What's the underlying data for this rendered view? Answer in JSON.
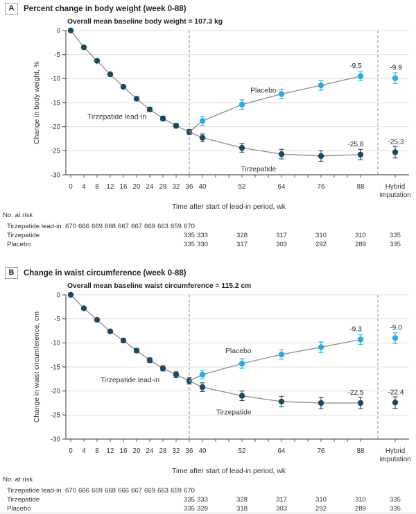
{
  "colors": {
    "dark_series": "#1b4a5c",
    "light_series": "#29abe2",
    "line": "#8c8c8c",
    "grid": "#dedede",
    "axis": "#58595b",
    "dashed": "#8f8f8f",
    "text": "#333333",
    "title_text": "#222222"
  },
  "chart_data": [
    {
      "type": "line",
      "panel_letter": "A",
      "title": "Percent change in body weight (week 0-88)",
      "subtitle": "Overall mean baseline body weight = 107.3 kg",
      "ylabel": "Change in body weight, %",
      "xlabel": "Time after start of lead-in period, wk",
      "ylim": [
        -30,
        0
      ],
      "yticks": [
        0,
        -5,
        -10,
        -15,
        -20,
        -25,
        -30
      ],
      "xtick_weeks": [
        0,
        4,
        8,
        12,
        16,
        20,
        24,
        28,
        32,
        36,
        40,
        52,
        64,
        76,
        88
      ],
      "hybrid_label": [
        "Hybrid",
        "imputation"
      ],
      "randomization_week": 36,
      "grid": true,
      "series": [
        {
          "name": "Tirzepatide lead-in",
          "key": "leadin",
          "color": "dark",
          "weeks": [
            0,
            4,
            8,
            12,
            16,
            20,
            24,
            28,
            32,
            36
          ],
          "values": [
            0,
            -3.5,
            -6.3,
            -9.1,
            -11.7,
            -14.2,
            -16.4,
            -18.3,
            -19.8,
            -21.1
          ],
          "se": [
            0,
            0.25,
            0.3,
            0.3,
            0.35,
            0.4,
            0.45,
            0.5,
            0.5,
            0.55
          ],
          "label": {
            "text": "Tirzepatide lead-in",
            "week": 14,
            "value": -17.9
          }
        },
        {
          "name": "Placebo",
          "key": "placebo",
          "color": "light",
          "weeks": [
            40,
            52,
            64,
            76,
            88
          ],
          "values": [
            -18.8,
            -15.4,
            -13.2,
            -11.4,
            -9.5
          ],
          "se": [
            0.9,
            1.0,
            1.0,
            1.0,
            0.9
          ],
          "end_label": "-9.5",
          "hybrid": {
            "value": -9.9,
            "se": 1.1,
            "label": "-9.9"
          },
          "label": {
            "text": "Placebo",
            "week": 58.5,
            "value": -12.4
          }
        },
        {
          "name": "Tirzepatide",
          "key": "tirzepatide",
          "color": "dark",
          "weeks": [
            40,
            52,
            64,
            76,
            88
          ],
          "values": [
            -22.3,
            -24.4,
            -25.7,
            -26.1,
            -25.8
          ],
          "se": [
            0.8,
            0.9,
            1.0,
            1.1,
            1.1
          ],
          "end_label": "-25.8",
          "hybrid": {
            "value": -25.3,
            "se": 1.2,
            "label": "-25.3"
          },
          "label": {
            "text": "Tirzepatide",
            "week": 57,
            "value": -28.8
          }
        }
      ],
      "at_risk": {
        "header": "No. at risk",
        "rows": [
          {
            "label": "Tirzepatide lead-in",
            "positions": [
              0,
              4,
              8,
              12,
              16,
              20,
              24,
              28,
              32,
              36
            ],
            "values": [
              "670",
              "666",
              "669",
              "668",
              "667",
              "667",
              "669",
              "663",
              "659",
              "670"
            ]
          },
          {
            "label": "Tirzepatide",
            "positions": [
              36,
              40,
              52,
              64,
              76,
              88,
              null
            ],
            "values": [
              "335",
              "333",
              "328",
              "317",
              "310",
              "310",
              "335"
            ]
          },
          {
            "label": "Placebo",
            "positions": [
              36,
              40,
              52,
              64,
              76,
              88,
              null
            ],
            "values": [
              "335",
              "330",
              "317",
              "303",
              "292",
              "289",
              "335"
            ]
          }
        ]
      }
    },
    {
      "type": "line",
      "panel_letter": "B",
      "title": "Change in waist circumference (week 0-88)",
      "subtitle": "Overall mean baseline waist circumference = 115.2 cm",
      "ylabel": "Change in waist circumference, cm",
      "xlabel": "Time after start of lead-in period, wk",
      "ylim": [
        -30,
        0
      ],
      "yticks": [
        0,
        -5,
        -10,
        -15,
        -20,
        -25,
        -30
      ],
      "xtick_weeks": [
        0,
        4,
        8,
        12,
        16,
        20,
        24,
        28,
        32,
        36,
        40,
        52,
        64,
        76,
        88
      ],
      "hybrid_label": [
        "Hybrid",
        "imputation"
      ],
      "randomization_week": 36,
      "grid": true,
      "series": [
        {
          "name": "Tirzepatide lead-in",
          "key": "leadin",
          "color": "dark",
          "weeks": [
            0,
            4,
            8,
            12,
            16,
            20,
            24,
            28,
            32,
            36
          ],
          "values": [
            0,
            -2.8,
            -5.2,
            -7.6,
            -9.5,
            -11.6,
            -13.6,
            -15.3,
            -16.6,
            -17.9
          ],
          "se": [
            0,
            0.25,
            0.3,
            0.35,
            0.4,
            0.45,
            0.5,
            0.55,
            0.6,
            0.65
          ],
          "label": {
            "text": "Tirzepatide lead-in",
            "week": 18,
            "value": -17.7
          }
        },
        {
          "name": "Placebo",
          "key": "placebo",
          "color": "light",
          "weeks": [
            40,
            52,
            64,
            76,
            88
          ],
          "values": [
            -16.6,
            -14.3,
            -12.4,
            -10.9,
            -9.3
          ],
          "se": [
            0.9,
            1.0,
            1.0,
            1.1,
            1.0
          ],
          "end_label": "-9.3",
          "hybrid": {
            "value": -9.0,
            "se": 1.1,
            "label": "-9.0"
          },
          "label": {
            "text": "Placebo",
            "week": 50.9,
            "value": -11.6
          }
        },
        {
          "name": "Tirzepatide",
          "key": "tirzepatide",
          "color": "dark",
          "weeks": [
            40,
            52,
            64,
            76,
            88
          ],
          "values": [
            -19.2,
            -21.0,
            -22.2,
            -22.5,
            -22.5
          ],
          "se": [
            0.9,
            1.0,
            1.1,
            1.2,
            1.2
          ],
          "end_label": "-22.5",
          "hybrid": {
            "value": -22.4,
            "se": 1.2,
            "label": "-22.4"
          },
          "label": {
            "text": "Tirzepatide",
            "week": 49.5,
            "value": -24.4
          }
        }
      ],
      "at_risk": {
        "header": "No. at risk",
        "rows": [
          {
            "label": "Tirzepatide lead-in",
            "positions": [
              0,
              4,
              8,
              12,
              16,
              20,
              24,
              28,
              32,
              36
            ],
            "values": [
              "670",
              "666",
              "669",
              "668",
              "666",
              "667",
              "669",
              "663",
              "659",
              "670"
            ]
          },
          {
            "label": "Tirzepatide",
            "positions": [
              36,
              40,
              52,
              64,
              76,
              88,
              null
            ],
            "values": [
              "335",
              "333",
              "328",
              "317",
              "310",
              "310",
              "335"
            ]
          },
          {
            "label": "Placebo",
            "positions": [
              36,
              40,
              52,
              64,
              76,
              88,
              null
            ],
            "values": [
              "335",
              "328",
              "318",
              "303",
              "292",
              "289",
              "335"
            ]
          }
        ]
      }
    }
  ]
}
